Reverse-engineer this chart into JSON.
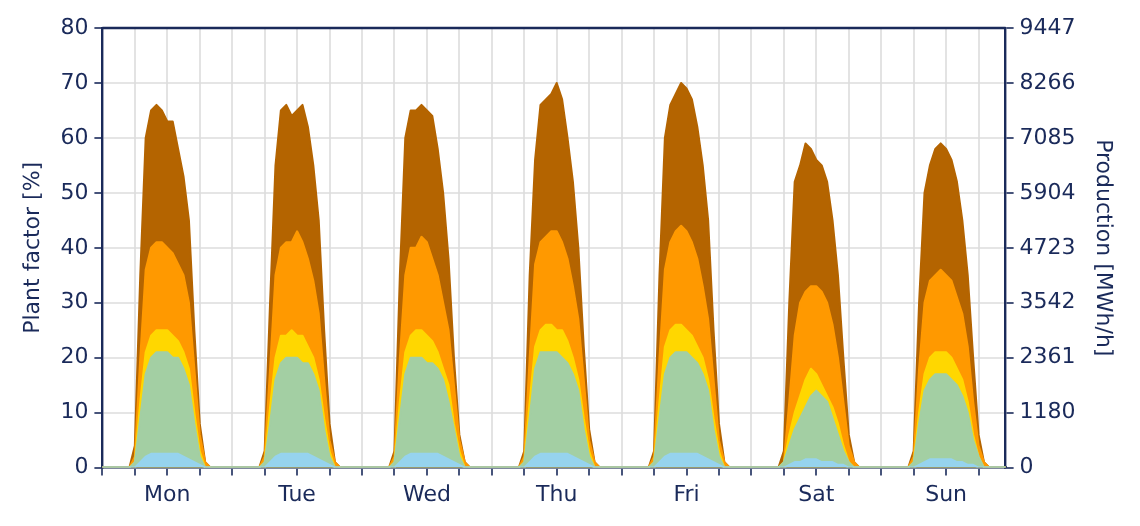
{
  "chart_data": {
    "type": "area",
    "ylabel": "Plant factor [%]",
    "y2label": "Production [MWh/h]",
    "marker": "none",
    "grid": true,
    "categories": [
      null,
      null,
      null,
      null,
      null,
      null,
      null,
      null,
      null,
      null,
      null,
      null,
      "Mon",
      null,
      null,
      null,
      null,
      null,
      null,
      null,
      null,
      null,
      null,
      null,
      null,
      null,
      null,
      null,
      null,
      null,
      null,
      null,
      null,
      null,
      null,
      null,
      "Tue",
      null,
      null,
      null,
      null,
      null,
      null,
      null,
      null,
      null,
      null,
      null,
      null,
      null,
      null,
      null,
      null,
      null,
      null,
      null,
      null,
      null,
      null,
      null,
      "Wed",
      null,
      null,
      null,
      null,
      null,
      null,
      null,
      null,
      null,
      null,
      null,
      null,
      null,
      null,
      null,
      null,
      null,
      null,
      null,
      null,
      null,
      null,
      null,
      "Thu",
      null,
      null,
      null,
      null,
      null,
      null,
      null,
      null,
      null,
      null,
      null,
      null,
      null,
      null,
      null,
      null,
      null,
      null,
      null,
      null,
      null,
      null,
      null,
      "Fri",
      null,
      null,
      null,
      null,
      null,
      null,
      null,
      null,
      null,
      null,
      null,
      null,
      null,
      null,
      null,
      null,
      null,
      null,
      null,
      null,
      null,
      null,
      null,
      "Sat",
      null,
      null,
      null,
      null,
      null,
      null,
      null,
      null,
      null,
      null,
      null,
      null,
      null,
      null,
      null,
      null,
      null,
      null,
      null,
      null,
      null,
      null,
      null,
      "Sun",
      null,
      null,
      null,
      null,
      null,
      null,
      null,
      null,
      null,
      null,
      null
    ],
    "ylim": [
      0,
      80
    ],
    "yticks": [
      0,
      10,
      20,
      30,
      40,
      50,
      60,
      70,
      80
    ],
    "y2lim": [
      0,
      9447
    ],
    "y2ticks": [
      0,
      1180,
      2361,
      3542,
      4723,
      5904,
      7085,
      8266,
      9447
    ],
    "series": [
      {
        "color": "#b46400",
        "values": [
          0,
          0,
          0,
          0,
          0,
          0,
          4,
          35,
          60,
          65,
          66,
          65,
          63,
          63,
          58,
          53,
          45,
          25,
          8,
          1,
          0,
          0,
          0,
          0,
          0,
          0,
          0,
          0,
          0,
          0,
          3,
          30,
          55,
          65,
          66,
          64,
          65,
          66,
          62,
          55,
          45,
          25,
          8,
          1,
          0,
          0,
          0,
          0,
          0,
          0,
          0,
          0,
          0,
          0,
          3,
          35,
          60,
          65,
          65,
          66,
          65,
          64,
          58,
          50,
          38,
          20,
          6,
          1,
          0,
          0,
          0,
          0,
          0,
          0,
          0,
          0,
          0,
          0,
          3,
          35,
          56,
          66,
          67,
          68,
          70,
          67,
          60,
          52,
          40,
          22,
          7,
          1,
          0,
          0,
          0,
          0,
          0,
          0,
          0,
          0,
          0,
          0,
          3,
          35,
          60,
          66,
          68,
          70,
          69,
          67,
          62,
          55,
          45,
          25,
          8,
          1,
          0,
          0,
          0,
          0,
          0,
          0,
          0,
          0,
          0,
          0,
          3,
          30,
          52,
          55,
          59,
          58,
          56,
          55,
          52,
          45,
          35,
          20,
          6,
          1,
          0,
          0,
          0,
          0,
          0,
          0,
          0,
          0,
          0,
          0,
          3,
          30,
          50,
          55,
          58,
          59,
          58,
          56,
          52,
          45,
          35,
          20,
          6,
          1,
          0,
          0,
          0,
          0
        ]
      },
      {
        "color": "#ff9900",
        "values": [
          0,
          0,
          0,
          0,
          0,
          0,
          2,
          20,
          36,
          40,
          41,
          41,
          40,
          39,
          37,
          35,
          30,
          18,
          6,
          1,
          0,
          0,
          0,
          0,
          0,
          0,
          0,
          0,
          0,
          0,
          2,
          18,
          35,
          40,
          41,
          41,
          43,
          41,
          38,
          34,
          28,
          16,
          5,
          1,
          0,
          0,
          0,
          0,
          0,
          0,
          0,
          0,
          0,
          0,
          2,
          20,
          35,
          40,
          40,
          42,
          41,
          38,
          35,
          30,
          25,
          15,
          5,
          1,
          0,
          0,
          0,
          0,
          0,
          0,
          0,
          0,
          0,
          0,
          2,
          20,
          37,
          41,
          42,
          43,
          43,
          41,
          38,
          33,
          27,
          16,
          5,
          1,
          0,
          0,
          0,
          0,
          0,
          0,
          0,
          0,
          0,
          0,
          2,
          20,
          36,
          41,
          43,
          44,
          43,
          41,
          38,
          33,
          27,
          16,
          5,
          1,
          0,
          0,
          0,
          0,
          0,
          0,
          0,
          0,
          0,
          0,
          1,
          12,
          24,
          30,
          32,
          33,
          33,
          32,
          30,
          26,
          20,
          12,
          4,
          1,
          0,
          0,
          0,
          0,
          0,
          0,
          0,
          0,
          0,
          0,
          2,
          18,
          30,
          34,
          35,
          36,
          35,
          34,
          31,
          28,
          22,
          12,
          4,
          1,
          0,
          0,
          0,
          0
        ]
      },
      {
        "color": "#ffd700",
        "values": [
          0,
          0,
          0,
          0,
          0,
          0,
          1,
          12,
          21,
          24,
          25,
          25,
          25,
          24,
          23,
          21,
          18,
          10,
          3,
          0,
          0,
          0,
          0,
          0,
          0,
          0,
          0,
          0,
          0,
          0,
          1,
          11,
          20,
          24,
          24,
          25,
          24,
          24,
          22,
          20,
          16,
          9,
          3,
          0,
          0,
          0,
          0,
          0,
          0,
          0,
          0,
          0,
          0,
          0,
          1,
          12,
          21,
          24,
          25,
          25,
          24,
          23,
          21,
          18,
          15,
          8,
          3,
          0,
          0,
          0,
          0,
          0,
          0,
          0,
          0,
          0,
          0,
          0,
          1,
          12,
          22,
          25,
          26,
          26,
          25,
          25,
          23,
          20,
          16,
          9,
          3,
          0,
          0,
          0,
          0,
          0,
          0,
          0,
          0,
          0,
          0,
          0,
          1,
          12,
          22,
          25,
          26,
          26,
          25,
          24,
          22,
          20,
          16,
          9,
          3,
          0,
          0,
          0,
          0,
          0,
          0,
          0,
          0,
          0,
          0,
          0,
          1,
          6,
          10,
          13,
          16,
          18,
          17,
          15,
          13,
          11,
          8,
          4,
          1,
          0,
          0,
          0,
          0,
          0,
          0,
          0,
          0,
          0,
          0,
          0,
          1,
          10,
          17,
          20,
          21,
          21,
          21,
          20,
          18,
          16,
          12,
          6,
          2,
          0,
          0,
          0,
          0,
          0
        ]
      },
      {
        "color": "#a3cfa3",
        "values": [
          0,
          0,
          0,
          0,
          0,
          0,
          1,
          9,
          17,
          20,
          21,
          21,
          21,
          20,
          20,
          18,
          15,
          8,
          2,
          0,
          0,
          0,
          0,
          0,
          0,
          0,
          0,
          0,
          0,
          0,
          1,
          8,
          16,
          19,
          20,
          20,
          20,
          19,
          19,
          17,
          14,
          7,
          2,
          0,
          0,
          0,
          0,
          0,
          0,
          0,
          0,
          0,
          0,
          0,
          1,
          9,
          17,
          20,
          20,
          20,
          19,
          19,
          18,
          16,
          12,
          7,
          2,
          0,
          0,
          0,
          0,
          0,
          0,
          0,
          0,
          0,
          0,
          0,
          1,
          9,
          18,
          21,
          21,
          21,
          21,
          20,
          19,
          17,
          14,
          7,
          2,
          0,
          0,
          0,
          0,
          0,
          0,
          0,
          0,
          0,
          0,
          0,
          1,
          9,
          17,
          20,
          21,
          21,
          21,
          20,
          19,
          17,
          14,
          7,
          2,
          0,
          0,
          0,
          0,
          0,
          0,
          0,
          0,
          0,
          0,
          0,
          1,
          4,
          7,
          9,
          11,
          13,
          14,
          13,
          12,
          9,
          6,
          3,
          1,
          0,
          0,
          0,
          0,
          0,
          0,
          0,
          0,
          0,
          0,
          0,
          1,
          8,
          14,
          16,
          17,
          17,
          17,
          16,
          15,
          13,
          10,
          5,
          2,
          0,
          0,
          0,
          0,
          0
        ]
      },
      {
        "color": "#96d3ee",
        "values": [
          0,
          0,
          0,
          0,
          0,
          0,
          0,
          1,
          2,
          2.5,
          2.5,
          2.5,
          2.5,
          2.5,
          2.5,
          2,
          1.5,
          1,
          0.5,
          0,
          0,
          0,
          0,
          0,
          0,
          0,
          0,
          0,
          0,
          0,
          0,
          1,
          2,
          2.5,
          2.5,
          2.5,
          2.5,
          2.5,
          2.5,
          2,
          1.5,
          1,
          0.5,
          0,
          0,
          0,
          0,
          0,
          0,
          0,
          0,
          0,
          0,
          0,
          0,
          1,
          2,
          2.5,
          2.5,
          2.5,
          2.5,
          2.5,
          2.5,
          2,
          1.5,
          1,
          0.5,
          0,
          0,
          0,
          0,
          0,
          0,
          0,
          0,
          0,
          0,
          0,
          0,
          1,
          2,
          2.5,
          2.5,
          2.5,
          2.5,
          2.5,
          2.5,
          2,
          1.5,
          1,
          0.5,
          0,
          0,
          0,
          0,
          0,
          0,
          0,
          0,
          0,
          0,
          0,
          0,
          1,
          2,
          2.5,
          2.5,
          2.5,
          2.5,
          2.5,
          2.5,
          2,
          1.5,
          1,
          0.5,
          0,
          0,
          0,
          0,
          0,
          0,
          0,
          0,
          0,
          0,
          0,
          0,
          0.5,
          1,
          1,
          1.5,
          1.5,
          1.5,
          1,
          1,
          1,
          0.5,
          0.5,
          0,
          0,
          0,
          0,
          0,
          0,
          0,
          0,
          0,
          0,
          0,
          0,
          0,
          0.5,
          1,
          1.5,
          1.5,
          1.5,
          1.5,
          1.5,
          1,
          1,
          0.5,
          0.5,
          0,
          0,
          0,
          0,
          0,
          0
        ]
      }
    ]
  }
}
